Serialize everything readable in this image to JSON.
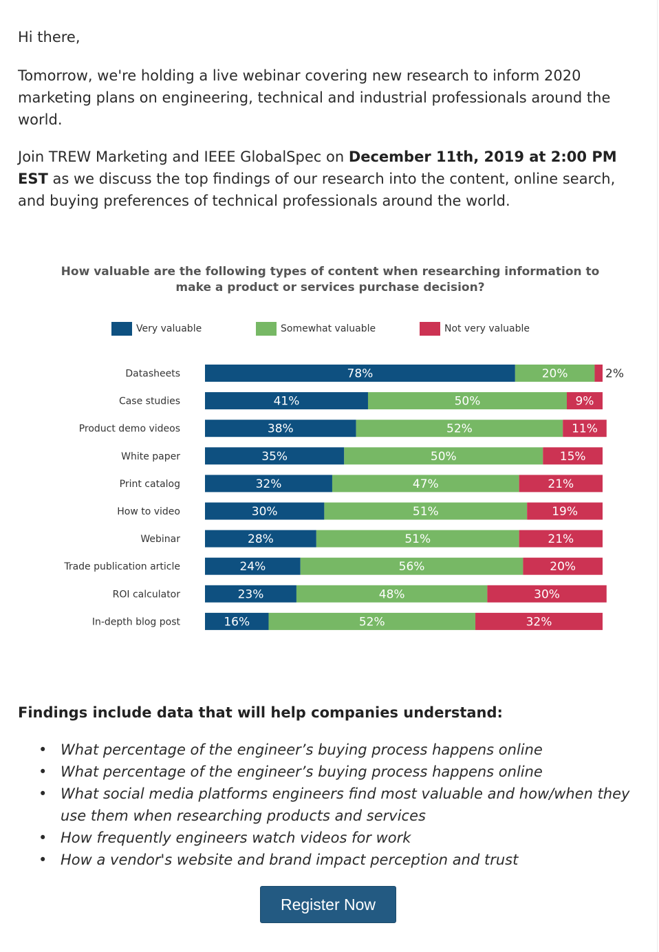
{
  "email": {
    "greeting": "Hi there,",
    "paragraph1": "Tomorrow, we're holding a live webinar covering new research to inform 2020 marketing plans on engineering, technical and industrial professionals around the world.",
    "paragraph2_pre": "Join TREW Marketing and IEEE GlobalSpec on ",
    "paragraph2_bold": "December 11th, 2019 at 2:00 PM EST",
    "paragraph2_post": " as we discuss the top findings of our research into the content, online search, and buying preferences of technical professionals around the world."
  },
  "chart_data": {
    "type": "bar",
    "orientation": "horizontal",
    "stacked": true,
    "title": "How valuable are the following types of content when researching information to make a product or services purchase decision?",
    "legend_placement": "top",
    "categories": [
      "Datasheets",
      "Case studies",
      "Product demo videos",
      "White paper",
      "Print catalog",
      "How to video",
      "Webinar",
      "Trade publication article",
      "ROI calculator",
      "In-depth blog post"
    ],
    "series": [
      {
        "name": "Very valuable",
        "color": "#0e5080",
        "values": [
          78,
          41,
          38,
          35,
          32,
          30,
          28,
          24,
          23,
          16
        ]
      },
      {
        "name": "Somewhat valuable",
        "color": "#77b865",
        "values": [
          20,
          50,
          52,
          50,
          47,
          51,
          51,
          56,
          48,
          52
        ]
      },
      {
        "name": "Not very valuable",
        "color": "#cc3353",
        "values": [
          2,
          9,
          11,
          15,
          21,
          19,
          21,
          20,
          30,
          32
        ]
      }
    ],
    "value_suffix": "%",
    "xlim": [
      0,
      100
    ],
    "grid": false
  },
  "findings": {
    "title": "Findings include data that will help companies understand:",
    "items": [
      "What percentage of the engineer’s buying process happens online",
      "What percentage of the engineer’s buying process happens online",
      "What social media platforms engineers find most valuable and how/when they use them when researching products and services",
      "How frequently engineers watch videos for work",
      "How a vendor's website and brand impact perception and trust"
    ]
  },
  "cta": {
    "register_label": "Register Now",
    "color": "#235a82"
  }
}
